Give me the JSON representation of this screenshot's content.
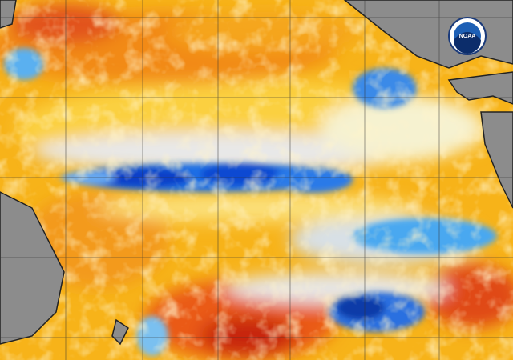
{
  "logo": {
    "text": "NOAA"
  }
}
